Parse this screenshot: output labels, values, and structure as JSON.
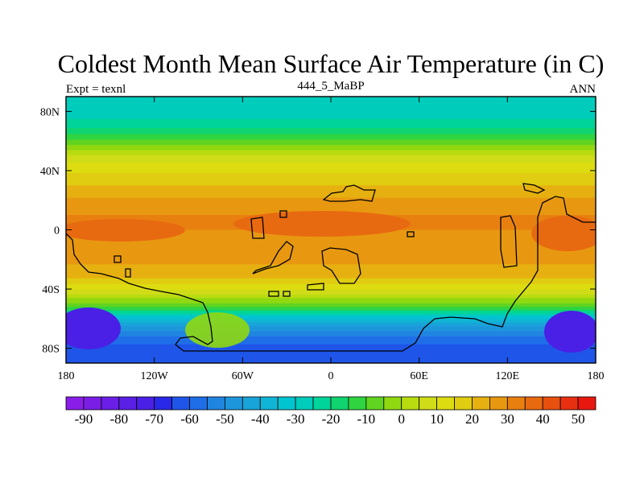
{
  "chart_data": {
    "type": "heatmap",
    "title": "Coldest Month Mean Surface Air Temperature (in C)",
    "subtitle_left": "Expt = texnl",
    "subtitle_center": "444_5_MaBP",
    "subtitle_right": "ANN",
    "x_ticks": [
      "180",
      "120W",
      "60W",
      "0",
      "60E",
      "120E",
      "180"
    ],
    "y_ticks": [
      "80N",
      "40N",
      "0",
      "40S",
      "80S"
    ],
    "xlim": [
      -180,
      180
    ],
    "ylim": [
      -90,
      90
    ],
    "zonal_profile": {
      "lat": [
        90,
        80,
        70,
        62,
        55,
        48,
        40,
        30,
        20,
        10,
        0,
        -10,
        -20,
        -30,
        -38,
        -45,
        -52,
        -58,
        -65,
        -72,
        -80,
        -90
      ],
      "temp": [
        -30,
        -28,
        -22,
        -12,
        -2,
        8,
        14,
        20,
        26,
        30,
        30,
        28,
        26,
        22,
        14,
        2,
        -10,
        -30,
        -45,
        -55,
        -62,
        -60
      ]
    },
    "colorbar": {
      "levels": [
        -95,
        -90,
        -85,
        -80,
        -75,
        -70,
        -65,
        -60,
        -55,
        -50,
        -45,
        -40,
        -35,
        -30,
        -25,
        -20,
        -15,
        -10,
        -5,
        0,
        5,
        10,
        15,
        20,
        25,
        30,
        35,
        40,
        45,
        50,
        55
      ],
      "tick_labels": [
        "-90",
        "-80",
        "-70",
        "-60",
        "-50",
        "-40",
        "-30",
        "-20",
        "-10",
        "0",
        "10",
        "20",
        "30",
        "40",
        "50"
      ],
      "colors": [
        "#8a1ee8",
        "#7a1ee6",
        "#6a1ee6",
        "#5a20e6",
        "#4a20e6",
        "#2a28e8",
        "#1f55e8",
        "#1f6ee8",
        "#2085e0",
        "#1e96dc",
        "#18a4d8",
        "#10b4d4",
        "#00c4d0",
        "#00ccbc",
        "#00d49a",
        "#10d470",
        "#30d440",
        "#60d420",
        "#90d810",
        "#b8dc10",
        "#d0dc18",
        "#dcdc10",
        "#e0cc10",
        "#e6b010",
        "#e89810",
        "#e88010",
        "#e86a10",
        "#e85010",
        "#e83010",
        "#e81810"
      ]
    }
  }
}
